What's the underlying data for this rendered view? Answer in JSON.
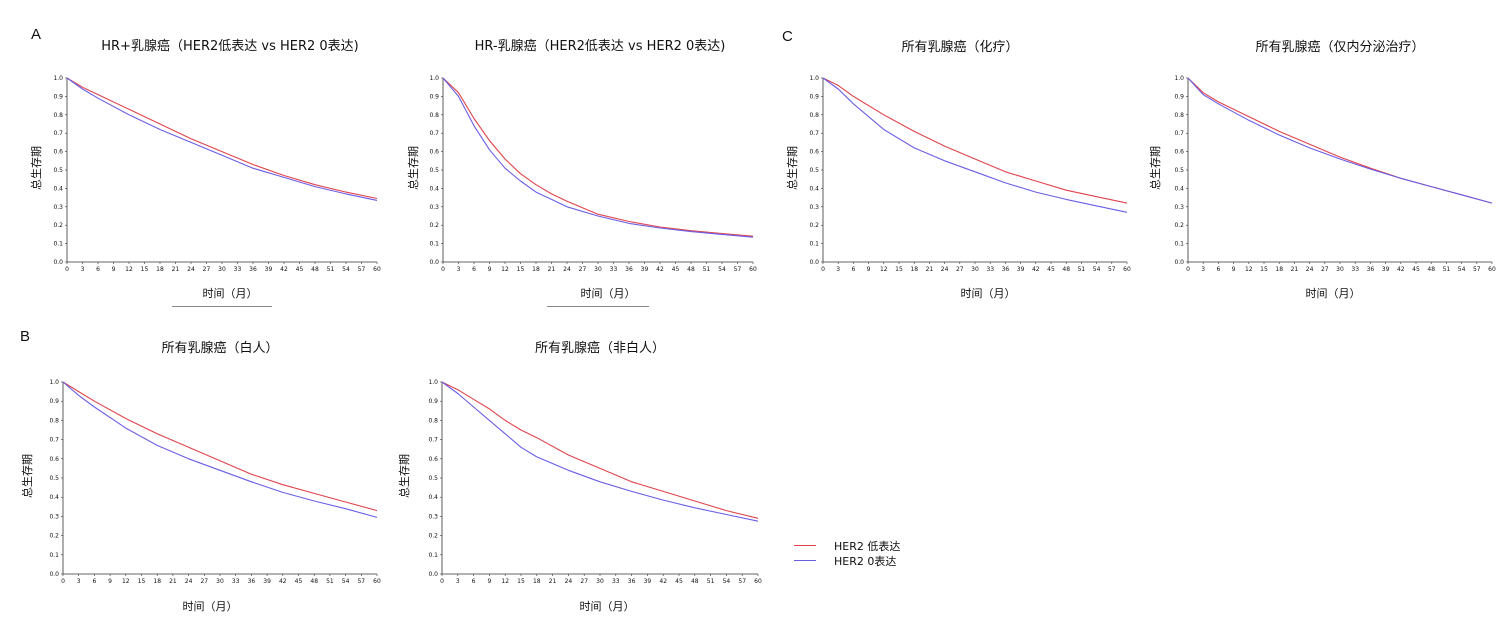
{
  "panels": [
    {
      "letter": "A"
    },
    {
      "letter": "B"
    },
    {
      "letter": "C"
    }
  ],
  "legend": [
    {
      "label": "HER2 低表达",
      "color": "#e0444c"
    },
    {
      "label": "HER2 0表达",
      "color": "#6a5ee6"
    }
  ],
  "chart_data": [
    {
      "type": "line",
      "title": "HR+乳腺癌（HER2低表达 vs HER2 0表达)",
      "xlabel": "时间（月）",
      "ylabel": "总生存期",
      "xlim": [
        0,
        60
      ],
      "ylim": [
        0,
        1.0
      ],
      "x": [
        0,
        3,
        6,
        12,
        18,
        24,
        30,
        36,
        42,
        48,
        54,
        60
      ],
      "series": [
        {
          "color": "#e0444c",
          "values": [
            1.0,
            0.95,
            0.91,
            0.83,
            0.75,
            0.67,
            0.6,
            0.53,
            0.47,
            0.42,
            0.38,
            0.345
          ]
        },
        {
          "color": "#6a5ee6",
          "values": [
            1.0,
            0.94,
            0.89,
            0.8,
            0.72,
            0.65,
            0.58,
            0.51,
            0.46,
            0.41,
            0.37,
            0.335
          ]
        }
      ]
    },
    {
      "type": "line",
      "title": "HR-乳腺癌（HER2低表达 vs HER2 0表达)",
      "xlabel": "时间（月）",
      "ylabel": "总生存期",
      "xlim": [
        0,
        60
      ],
      "ylim": [
        0,
        1.0
      ],
      "x": [
        0,
        3,
        6,
        9,
        12,
        15,
        18,
        21,
        24,
        30,
        36,
        42,
        48,
        54,
        60
      ],
      "series": [
        {
          "color": "#e0444c",
          "values": [
            1.0,
            0.92,
            0.78,
            0.66,
            0.56,
            0.48,
            0.42,
            0.37,
            0.33,
            0.26,
            0.22,
            0.19,
            0.17,
            0.155,
            0.14
          ]
        },
        {
          "color": "#6a5ee6",
          "values": [
            1.0,
            0.9,
            0.74,
            0.61,
            0.51,
            0.44,
            0.38,
            0.34,
            0.3,
            0.25,
            0.21,
            0.185,
            0.165,
            0.15,
            0.135
          ]
        }
      ]
    },
    {
      "type": "line",
      "title": "所有乳腺癌（化疗）",
      "xlabel": "时间（月）",
      "ylabel": "总生存期",
      "xlim": [
        0,
        60
      ],
      "ylim": [
        0,
        1.0
      ],
      "x": [
        0,
        3,
        6,
        12,
        18,
        24,
        30,
        36,
        42,
        48,
        54,
        60
      ],
      "series": [
        {
          "color": "#e0444c",
          "values": [
            1.0,
            0.96,
            0.9,
            0.8,
            0.71,
            0.63,
            0.56,
            0.49,
            0.44,
            0.39,
            0.355,
            0.32
          ]
        },
        {
          "color": "#6a5ee6",
          "values": [
            1.0,
            0.94,
            0.86,
            0.72,
            0.62,
            0.55,
            0.49,
            0.43,
            0.38,
            0.34,
            0.305,
            0.27
          ]
        }
      ]
    },
    {
      "type": "line",
      "title": "所有乳腺癌（仅内分泌治疗）",
      "xlabel": "时间（月）",
      "ylabel": "总生存期",
      "xlim": [
        0,
        60
      ],
      "ylim": [
        0,
        1.0
      ],
      "x": [
        0,
        3,
        6,
        12,
        18,
        24,
        30,
        36,
        42,
        48,
        54,
        60
      ],
      "series": [
        {
          "color": "#e0444c",
          "values": [
            1.0,
            0.92,
            0.87,
            0.79,
            0.71,
            0.64,
            0.57,
            0.51,
            0.455,
            0.41,
            0.365,
            0.32
          ]
        },
        {
          "color": "#6a5ee6",
          "values": [
            1.0,
            0.91,
            0.86,
            0.77,
            0.69,
            0.62,
            0.56,
            0.505,
            0.455,
            0.41,
            0.365,
            0.32
          ]
        }
      ]
    },
    {
      "type": "line",
      "title": "所有乳腺癌（白人）",
      "xlabel": "时间（月）",
      "ylabel": "总生存期",
      "xlim": [
        0,
        60
      ],
      "ylim": [
        0,
        1.0
      ],
      "x": [
        0,
        3,
        6,
        12,
        18,
        24,
        30,
        36,
        42,
        48,
        54,
        60
      ],
      "series": [
        {
          "color": "#e0444c",
          "values": [
            1.0,
            0.95,
            0.9,
            0.81,
            0.73,
            0.66,
            0.59,
            0.52,
            0.465,
            0.42,
            0.375,
            0.33
          ]
        },
        {
          "color": "#6a5ee6",
          "values": [
            1.0,
            0.93,
            0.87,
            0.76,
            0.67,
            0.6,
            0.54,
            0.48,
            0.425,
            0.38,
            0.34,
            0.295
          ]
        }
      ]
    },
    {
      "type": "line",
      "title": "所有乳腺癌（非白人）",
      "xlabel": "时间（月）",
      "ylabel": "总生存期",
      "xlim": [
        0,
        60
      ],
      "ylim": [
        0,
        1.0
      ],
      "x": [
        0,
        3,
        6,
        9,
        12,
        15,
        18,
        24,
        30,
        36,
        42,
        48,
        54,
        60
      ],
      "series": [
        {
          "color": "#e0444c",
          "values": [
            1.0,
            0.96,
            0.91,
            0.86,
            0.8,
            0.75,
            0.71,
            0.62,
            0.55,
            0.48,
            0.43,
            0.38,
            0.33,
            0.29
          ]
        },
        {
          "color": "#6a5ee6",
          "values": [
            1.0,
            0.94,
            0.87,
            0.8,
            0.73,
            0.66,
            0.61,
            0.54,
            0.48,
            0.43,
            0.385,
            0.345,
            0.31,
            0.275
          ]
        }
      ]
    }
  ]
}
